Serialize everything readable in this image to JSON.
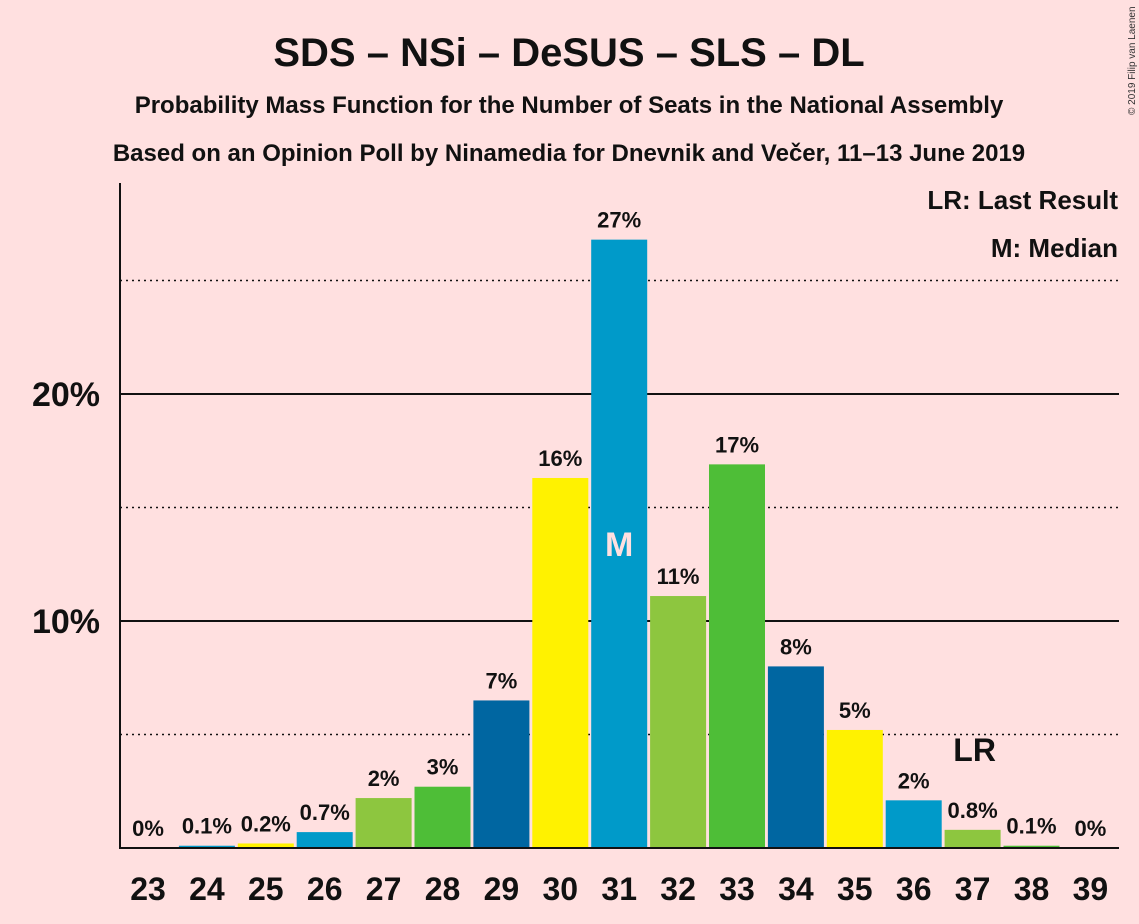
{
  "copyright": "© 2019 Filip van Laenen",
  "legend": {
    "last_result": "LR: Last Result",
    "median": "M: Median"
  },
  "markers": {
    "median_label": "M",
    "median_seat": "31",
    "last_result_label": "LR",
    "last_result_seat": "37"
  },
  "colors": {
    "background": "#FFE0E0",
    "sds_blue": "#0066A1",
    "nsi_cyan": "#009AC9",
    "desus_lightgreen": "#8DC63F",
    "sls_green": "#4EBE37",
    "dl_yellow": "#FFF200"
  },
  "chart_data": {
    "type": "bar",
    "title": "SDS – NSi – DeSUS – SLS – DL",
    "subtitle": "Probability Mass Function for the Number of Seats in the National Assembly",
    "subtitle2": "Based on an Opinion Poll by Ninamedia for Dnevnik and Večer, 11–13 June 2019",
    "xlabel": "",
    "ylabel": "",
    "ylim": [
      0,
      29
    ],
    "yticks": [
      {
        "value": 10,
        "label": "10%"
      },
      {
        "value": 20,
        "label": "20%"
      }
    ],
    "gridlines": {
      "solid": [
        10,
        20
      ],
      "dotted": [
        5,
        15,
        25
      ]
    },
    "categories": [
      "23",
      "24",
      "25",
      "26",
      "27",
      "28",
      "29",
      "30",
      "31",
      "32",
      "33",
      "34",
      "35",
      "36",
      "37",
      "38",
      "39"
    ],
    "values": [
      0,
      0.1,
      0.2,
      0.7,
      2.2,
      2.7,
      6.5,
      16.3,
      26.8,
      11.1,
      16.9,
      8.0,
      5.2,
      2.1,
      0.8,
      0.1,
      0
    ],
    "labels": [
      "0%",
      "0.1%",
      "0.2%",
      "0.7%",
      "2%",
      "3%",
      "7%",
      "16%",
      "27%",
      "11%",
      "17%",
      "8%",
      "5%",
      "2%",
      "0.8%",
      "0.1%",
      "0%"
    ],
    "bar_colors": [
      "#0066A1",
      "#009AC9",
      "#FFF200",
      "#009AC9",
      "#8DC63F",
      "#4EBE37",
      "#0066A1",
      "#FFF200",
      "#009AC9",
      "#8DC63F",
      "#4EBE37",
      "#0066A1",
      "#FFF200",
      "#009AC9",
      "#8DC63F",
      "#4EBE37",
      "#0066A1"
    ]
  }
}
